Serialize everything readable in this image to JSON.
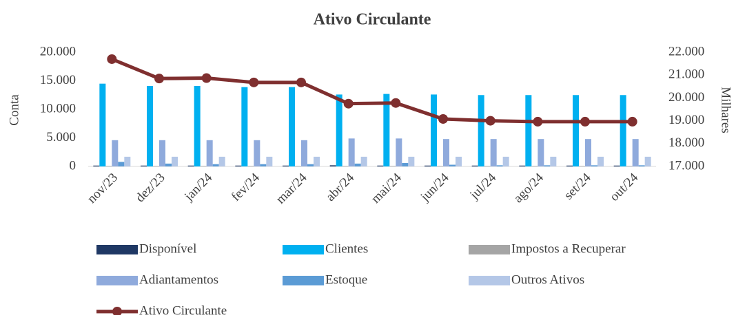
{
  "chart_data": {
    "type": "bar",
    "title": "Ativo Circulante",
    "ylabel": "Conta",
    "y2label": "Milhares",
    "categories": [
      "nov/23",
      "dez/23",
      "jan/24",
      "fev/24",
      "mar/24",
      "abr/24",
      "mai/24",
      "jun/24",
      "jul/24",
      "ago/24",
      "set/24",
      "out/24"
    ],
    "series": [
      {
        "name": "Disponível",
        "color": "#1f3864",
        "values": [
          150,
          150,
          150,
          150,
          150,
          200,
          150,
          150,
          150,
          150,
          150,
          150
        ]
      },
      {
        "name": "Clientes",
        "color": "#00b0f0",
        "values": [
          14500,
          14100,
          14100,
          13900,
          13900,
          12600,
          12700,
          12600,
          12500,
          12500,
          12500,
          12500
        ]
      },
      {
        "name": "Impostos a Recuperar",
        "color": "#a5a5a5",
        "values": [
          100,
          100,
          100,
          100,
          100,
          100,
          100,
          100,
          100,
          100,
          100,
          100
        ]
      },
      {
        "name": "Adiantamentos",
        "color": "#8faadc",
        "values": [
          4600,
          4600,
          4600,
          4600,
          4600,
          4900,
          4900,
          4800,
          4800,
          4800,
          4800,
          4800
        ]
      },
      {
        "name": "Estoque",
        "color": "#5b9bd5",
        "values": [
          800,
          500,
          400,
          400,
          400,
          500,
          600,
          300,
          200,
          200,
          200,
          200
        ]
      },
      {
        "name": "Outros Ativos",
        "color": "#b4c7e7",
        "values": [
          1700,
          1700,
          1700,
          1700,
          1700,
          1700,
          1700,
          1700,
          1700,
          1700,
          1700,
          1700
        ]
      },
      {
        "name": "Ativo Circulante",
        "color": "#7f2f2f",
        "type": "line",
        "axis": "y2",
        "values": [
          21700,
          20850,
          20870,
          20680,
          20680,
          19750,
          19780,
          19080,
          19000,
          18960,
          18960,
          18960
        ]
      }
    ],
    "ylim": [
      0,
      20000
    ],
    "yticks": [
      0,
      {
        "value": 5000,
        "label": "5.000"
      },
      {
        "value": 10000,
        "label": "10.000"
      },
      {
        "value": 15000,
        "label": "15.000"
      },
      {
        "value": 20000,
        "label": "20.000"
      }
    ],
    "y2lim": [
      17000,
      22000
    ],
    "y2ticks": [
      {
        "value": 17000,
        "label": "17.000"
      },
      {
        "value": 18000,
        "label": "18.000"
      },
      {
        "value": 19000,
        "label": "19.000"
      },
      {
        "value": 20000,
        "label": "20.000"
      },
      {
        "value": 21000,
        "label": "21.000"
      },
      {
        "value": 22000,
        "label": "22.000"
      }
    ],
    "grid": false
  }
}
